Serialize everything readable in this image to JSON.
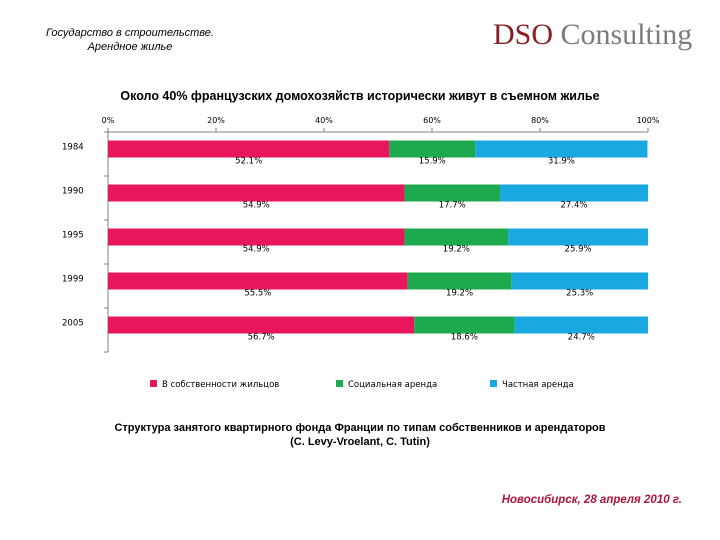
{
  "header": {
    "title_line1": "Государство в строительстве.",
    "title_line2": "Арендное жилье",
    "logo_part1": "DSO",
    "logo_part2": " Consulting"
  },
  "chart_data": {
    "type": "bar",
    "orientation": "horizontal",
    "stacked": true,
    "percent": true,
    "title": "Около 40% французских домохозяйств исторически живут в съемном жилье",
    "categories": [
      "1984",
      "1990",
      "1995",
      "1999",
      "2005"
    ],
    "series": [
      {
        "name": "В собственности жильцов",
        "color": "#e8175d",
        "values": [
          52.1,
          54.9,
          54.9,
          55.5,
          56.7
        ],
        "labels": [
          "52.1%",
          "54.9%",
          "54.9%",
          "55.5%",
          "56.7%"
        ]
      },
      {
        "name": "Социальная аренда",
        "color": "#1daa4f",
        "values": [
          15.9,
          17.7,
          19.2,
          19.2,
          18.6
        ],
        "labels": [
          "15.9%",
          "17.7%",
          "19.2%",
          "19.2%",
          "18.6%"
        ]
      },
      {
        "name": "Частная аренда",
        "color": "#19a8e0",
        "values": [
          31.9,
          27.4,
          25.9,
          25.3,
          24.7
        ],
        "labels": [
          "31.9%",
          "27.4%",
          "25.9%",
          "25.3%",
          "24.7%"
        ]
      }
    ],
    "xlim": [
      0,
      100
    ],
    "xticks": [
      "0%",
      "20%",
      "40%",
      "60%",
      "80%",
      "100%"
    ],
    "legend_position": "bottom",
    "grid": false
  },
  "caption": {
    "line1": "Структура занятого квартирного фонда Франции по типам собственников и арендаторов",
    "line2": "(C. Levy-Vroelant, C. Tutin)"
  },
  "footer": {
    "text": "Новосибирск, 28 апреля 2010 г."
  }
}
